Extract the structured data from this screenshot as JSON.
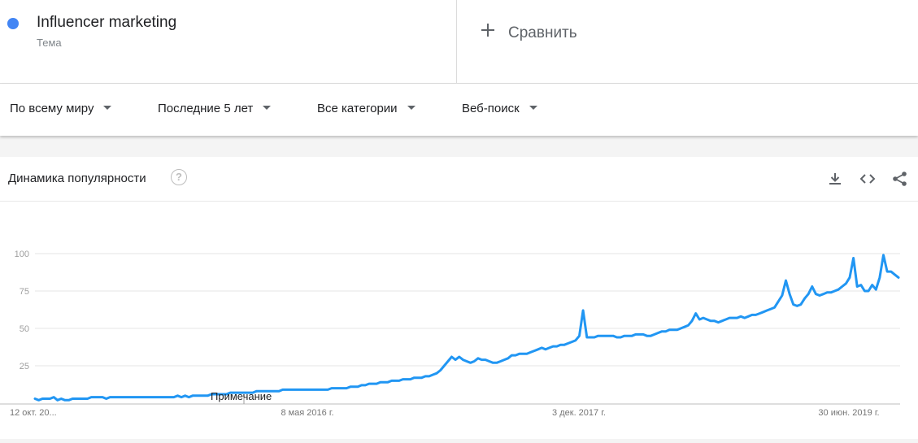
{
  "term": {
    "name": "Influencer marketing",
    "type": "Тема",
    "color": "#4285f4"
  },
  "compare": {
    "label": "Сравнить"
  },
  "filters": [
    {
      "label": "По всему миру"
    },
    {
      "label": "Последние 5 лет"
    },
    {
      "label": "Все категории"
    },
    {
      "label": "Веб-поиск"
    }
  ],
  "card": {
    "title": "Динамика популярности",
    "help_symbol": "?"
  },
  "icons": [
    "download-icon",
    "embed-icon",
    "share-icon",
    "help-icon"
  ],
  "chart_data": {
    "type": "line",
    "title": "",
    "xlabel": "",
    "ylabel": "",
    "ylim": [
      0,
      100
    ],
    "yticks": [
      25,
      50,
      75,
      100
    ],
    "x_tick_labels": [
      "12 окт. 20...",
      "8 мая 2016 г.",
      "3 дек. 2017 г.",
      "30 июн. 2019 г."
    ],
    "annotation": "Примечание",
    "grid": true,
    "series": [
      {
        "color": "#2196f3",
        "values": [
          3,
          2,
          3,
          3,
          3,
          4,
          2,
          3,
          2,
          2,
          3,
          3,
          3,
          3,
          3,
          4,
          4,
          4,
          4,
          3,
          4,
          4,
          4,
          4,
          4,
          4,
          4,
          4,
          4,
          4,
          4,
          4,
          4,
          4,
          4,
          4,
          4,
          4,
          5,
          4,
          5,
          4,
          5,
          5,
          5,
          5,
          5,
          6,
          6,
          6,
          6,
          6,
          7,
          7,
          7,
          7,
          7,
          7,
          7,
          8,
          8,
          8,
          8,
          8,
          8,
          8,
          9,
          9,
          9,
          9,
          9,
          9,
          9,
          9,
          9,
          9,
          9,
          9,
          9,
          10,
          10,
          10,
          10,
          10,
          11,
          11,
          11,
          12,
          12,
          13,
          13,
          13,
          14,
          14,
          14,
          15,
          15,
          15,
          16,
          16,
          16,
          17,
          17,
          17,
          18,
          18,
          19,
          20,
          22,
          25,
          28,
          31,
          29,
          31,
          29,
          28,
          27,
          28,
          30,
          29,
          29,
          28,
          27,
          27,
          28,
          29,
          30,
          32,
          32,
          33,
          33,
          33,
          34,
          35,
          36,
          37,
          36,
          37,
          38,
          38,
          39,
          39,
          40,
          41,
          42,
          45,
          62,
          44,
          44,
          44,
          45,
          45,
          45,
          45,
          45,
          44,
          44,
          45,
          45,
          45,
          46,
          46,
          46,
          45,
          45,
          46,
          47,
          48,
          48,
          49,
          49,
          49,
          50,
          51,
          52,
          55,
          60,
          56,
          57,
          56,
          55,
          55,
          54,
          55,
          56,
          57,
          57,
          57,
          58,
          57,
          58,
          59,
          59,
          60,
          61,
          62,
          63,
          64,
          68,
          72,
          82,
          73,
          66,
          65,
          66,
          70,
          73,
          78,
          73,
          72,
          73,
          74,
          74,
          75,
          76,
          78,
          80,
          84,
          97,
          78,
          79,
          75,
          75,
          79,
          76,
          84,
          99,
          88,
          88,
          86,
          84
        ]
      }
    ]
  }
}
